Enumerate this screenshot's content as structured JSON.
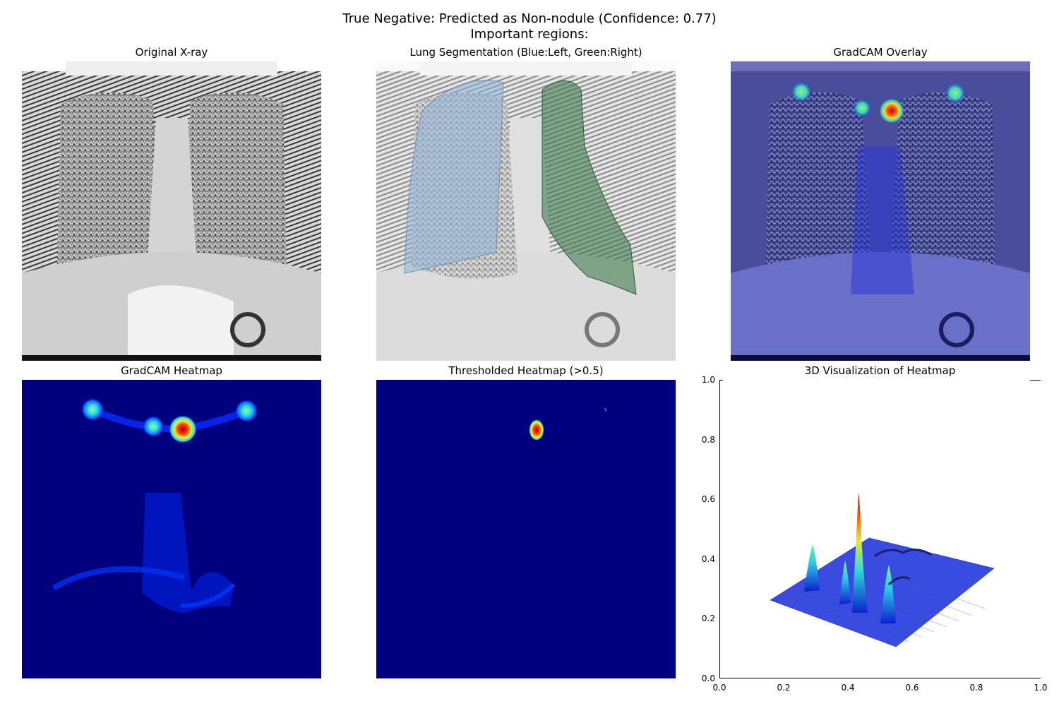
{
  "figure": {
    "title_line1": "True Negative: Predicted as Non-nodule (Confidence: 0.77)",
    "title_line2": "Important regions:"
  },
  "panels": {
    "original": {
      "title": "Original X-ray"
    },
    "segmentation": {
      "title": "Lung Segmentation (Blue:Left, Green:Right)"
    },
    "overlay": {
      "title": "GradCAM Overlay"
    },
    "heatmap": {
      "title": "GradCAM Heatmap"
    },
    "thresholded": {
      "title": "Thresholded Heatmap (>0.5)"
    },
    "surface3d": {
      "title": "3D Visualization of Heatmap"
    }
  },
  "chart_data": {
    "type": "surface",
    "title": "3D Visualization of Heatmap",
    "xlim": [
      0.0,
      1.0
    ],
    "ylim": [
      0.0,
      1.0
    ],
    "xticks": [
      "0.0",
      "0.2",
      "0.4",
      "0.6",
      "0.8",
      "1.0"
    ],
    "yticks": [
      "0.0",
      "0.2",
      "0.4",
      "0.6",
      "0.8",
      "1.0"
    ],
    "colormap": "jet"
  },
  "colors": {
    "jet_low": "#00007f",
    "jet_high": "#b30000",
    "left_lung": "#8fb0d8",
    "right_lung": "#3f7a4f"
  }
}
